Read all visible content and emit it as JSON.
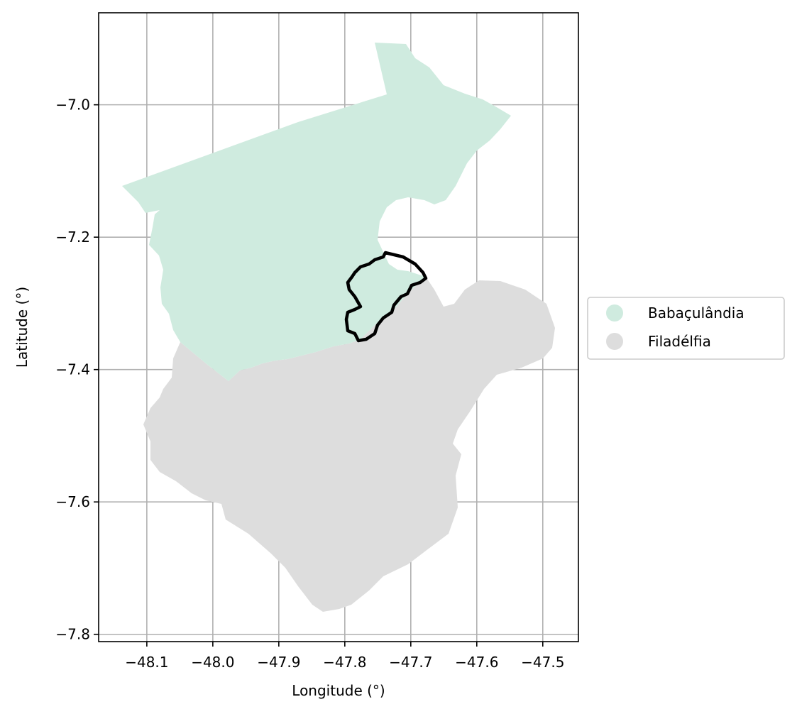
{
  "map": {
    "x_axis_label": "Longitude (°)",
    "y_axis_label": "Latitude (°)",
    "x_ticks": [
      {
        "value": -48.1,
        "label": "−48.1"
      },
      {
        "value": -48.0,
        "label": "−48.0"
      },
      {
        "value": -47.9,
        "label": "−47.9"
      },
      {
        "value": -47.8,
        "label": "−47.8"
      },
      {
        "value": -47.7,
        "label": "−47.7"
      },
      {
        "value": -47.6,
        "label": "−47.6"
      },
      {
        "value": -47.5,
        "label": "−47.5"
      }
    ],
    "y_ticks": [
      {
        "value": -7.0,
        "label": "−7.0"
      },
      {
        "value": -7.2,
        "label": "−7.2"
      },
      {
        "value": -7.4,
        "label": "−7.4"
      },
      {
        "value": -7.6,
        "label": "−7.6"
      },
      {
        "value": -7.8,
        "label": "−7.8"
      }
    ],
    "xlim": [
      -48.173,
      -47.446
    ],
    "ylim": [
      -7.811,
      -6.861
    ],
    "grid": true,
    "legend_position": "right",
    "legend": [
      {
        "label": "Babaçulândia",
        "color": "#cfebdf"
      },
      {
        "label": "Filadélfia",
        "color": "#dddddd"
      }
    ],
    "colors": {
      "babaculandia": "#cfebdf",
      "filadelfia": "#dddddd",
      "outline": "#000000",
      "grid": "#b0b0b0"
    }
  }
}
